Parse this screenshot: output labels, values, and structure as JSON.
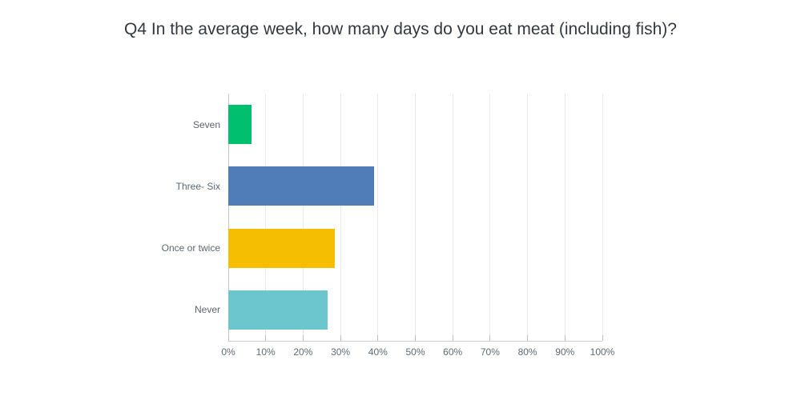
{
  "page": {
    "background": "#ffffff"
  },
  "chart_data": {
    "type": "bar",
    "orientation": "horizontal",
    "title": "Q4 In the average week, how many days do you eat meat (including fish)?",
    "categories": [
      "Seven",
      "Three- Six",
      "Once or twice",
      "Never"
    ],
    "values": [
      6.2,
      38.9,
      28.4,
      26.5
    ],
    "unit": "%",
    "bar_colors": [
      "#00bf6f",
      "#507cb8",
      "#f5be00",
      "#6bc6cd"
    ],
    "xlabel": "",
    "ylabel": "",
    "xlim": [
      0,
      100
    ],
    "xtick_step": 10,
    "xticks": [
      "0%",
      "10%",
      "20%",
      "30%",
      "40%",
      "50%",
      "60%",
      "70%",
      "80%",
      "90%",
      "100%"
    ],
    "grid": "vertical-gridlines-on",
    "legend": "none"
  },
  "colors": {
    "title_text": "#33383e",
    "category_label_text": "#5b6670",
    "tick_label_text": "#5f6a73",
    "gridline": "#e9e9e9",
    "axis_line": "#c4c7ca",
    "baseline": "#cccccc"
  }
}
